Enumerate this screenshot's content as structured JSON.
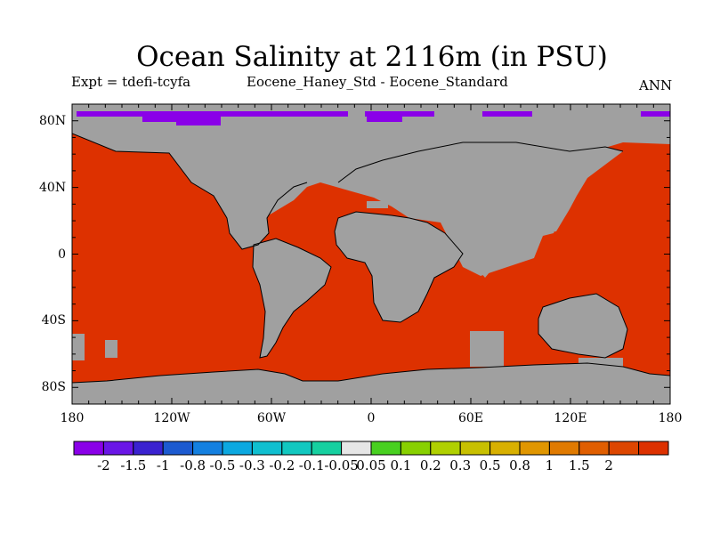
{
  "title": "Ocean Salinity at 2116m (in PSU)",
  "subtitle_left": "Expt = tdefi-tcyfa",
  "subtitle_center": "Eocene_Haney_Std - Eocene_Standard",
  "subtitle_right": "ANN",
  "map": {
    "projection": "cylindrical-equidistant",
    "lon_range": [
      -180,
      180
    ],
    "lat_range": [
      -90,
      90
    ],
    "land_color": "#a0a0a0",
    "ocean_value_color": "#dd3100",
    "polar_value_color": "#8a00e8",
    "lon_ticks": [
      {
        "label": "180",
        "lon": -180
      },
      {
        "label": "120W",
        "lon": -120
      },
      {
        "label": "60W",
        "lon": -60
      },
      {
        "label": "0",
        "lon": 0
      },
      {
        "label": "60E",
        "lon": 60
      },
      {
        "label": "120E",
        "lon": 120
      },
      {
        "label": "180",
        "lon": 180
      }
    ],
    "lat_ticks": [
      {
        "label": "80N",
        "lat": 80
      },
      {
        "label": "40N",
        "lat": 40
      },
      {
        "label": "0",
        "lat": 0
      },
      {
        "label": "40S",
        "lat": -40
      },
      {
        "label": "80S",
        "lat": -80
      }
    ]
  },
  "colorbar": {
    "colors": [
      "#8a00e8",
      "#6a16e6",
      "#3a22d0",
      "#1c5ad0",
      "#1480e0",
      "#0ca8e0",
      "#10bfd0",
      "#12c8c0",
      "#16d0a0",
      "#e6e6e6",
      "#48d020",
      "#88d000",
      "#b0d000",
      "#c8c000",
      "#d8b000",
      "#e09600",
      "#e07a00",
      "#e05e00",
      "#dd4600",
      "#dd3100"
    ],
    "labels": [
      "-2",
      "-1.5",
      "-1",
      "-0.8",
      "-0.5",
      "-0.3",
      "-0.2",
      "-0.1",
      "-0.05",
      "0.05",
      "0.1",
      "0.2",
      "0.3",
      "0.5",
      "0.8",
      "1",
      "1.5",
      "2"
    ]
  }
}
